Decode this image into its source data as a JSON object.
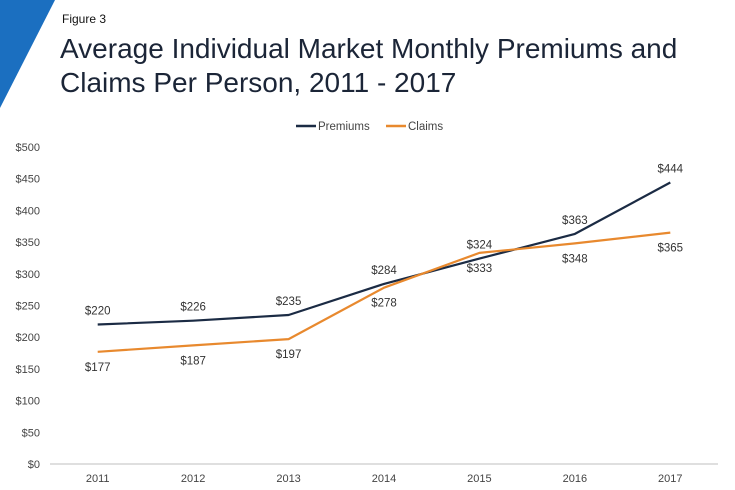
{
  "header": {
    "figure_label": "Figure 3",
    "title": "Average Individual Market Monthly Premiums and Claims Per Person, 2011 - 2017"
  },
  "colors": {
    "accent": "#1b6fc0",
    "premiums": "#1b2b44",
    "claims": "#e8892e",
    "axis": "#bfbfbf"
  },
  "chart_data": {
    "type": "line",
    "title": "Average Individual Market Monthly Premiums and Claims Per Person, 2011 - 2017",
    "categories": [
      "2011",
      "2012",
      "2013",
      "2014",
      "2015",
      "2016",
      "2017"
    ],
    "series": [
      {
        "name": "Premiums",
        "values": [
          220,
          226,
          235,
          284,
          324,
          363,
          444
        ],
        "labels": [
          "$220",
          "$226",
          "$235",
          "$284",
          "$324",
          "$363",
          "$444"
        ]
      },
      {
        "name": "Claims",
        "values": [
          177,
          187,
          197,
          278,
          333,
          348,
          365
        ],
        "labels": [
          "$177",
          "$187",
          "$197",
          "$278",
          "$333",
          "$348",
          "$365"
        ]
      }
    ],
    "ylim": [
      0,
      500
    ],
    "yticks": [
      0,
      50,
      100,
      150,
      200,
      250,
      300,
      350,
      400,
      450,
      500
    ],
    "ytick_labels": [
      "$0",
      "$50",
      "$100",
      "$150",
      "$200",
      "$250",
      "$300",
      "$350",
      "$400",
      "$450",
      "$500"
    ],
    "xlabel": "",
    "ylabel": "",
    "grid": false,
    "legend": "top-center"
  }
}
